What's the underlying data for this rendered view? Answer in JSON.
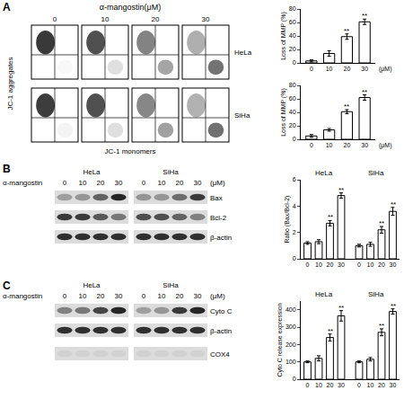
{
  "chart_data": [
    {
      "type": "bar",
      "ylabel": "Loss of MMP (%)",
      "xlabel": "(μM)",
      "categories": [
        "0",
        "10",
        "20",
        "30"
      ],
      "values": [
        3,
        14,
        39,
        61
      ],
      "errors": [
        1.5,
        4,
        4,
        4
      ],
      "significance": [
        null,
        null,
        "**",
        "**"
      ],
      "color": "#ffffff",
      "ylim": [
        0,
        80
      ],
      "yticks": [
        0,
        20,
        40,
        60,
        80
      ],
      "grid": false
    },
    {
      "type": "bar",
      "ylabel": "Loss of MMP (%)",
      "xlabel": "(μM)",
      "categories": [
        "0",
        "10",
        "20",
        "30"
      ],
      "values": [
        5,
        14,
        41,
        62
      ],
      "errors": [
        2,
        2,
        3,
        4
      ],
      "significance": [
        null,
        null,
        "**",
        "**"
      ],
      "color": "#ffffff",
      "ylim": [
        0,
        80
      ],
      "yticks": [
        0,
        20,
        40,
        60,
        80
      ],
      "grid": false
    },
    {
      "type": "bar",
      "ylabel": "Ratio (Bax/Bcl-2)",
      "categories": [
        "0",
        "10",
        "20",
        "30"
      ],
      "color": "#ffffff",
      "series": [
        {
          "name": "HeLa",
          "values": [
            1.2,
            1.3,
            2.7,
            4.8
          ],
          "errors": [
            0.1,
            0.15,
            0.2,
            0.2
          ],
          "significance": [
            null,
            null,
            "**",
            "**"
          ]
        },
        {
          "name": "SiHa",
          "values": [
            1.0,
            1.1,
            2.2,
            3.6
          ],
          "errors": [
            0.1,
            0.15,
            0.25,
            0.3
          ],
          "significance": [
            null,
            null,
            "**",
            "**"
          ]
        }
      ],
      "ylim": [
        0,
        6
      ],
      "yticks": [
        0,
        2,
        4,
        6
      ],
      "grid": false
    },
    {
      "type": "bar",
      "ylabel": "Cyto C release expression",
      "categories": [
        "0",
        "10",
        "20",
        "30"
      ],
      "color": "#ffffff",
      "series": [
        {
          "name": "HeLa",
          "values": [
            100,
            120,
            240,
            365
          ],
          "errors": [
            5,
            15,
            20,
            30
          ],
          "significance": [
            null,
            null,
            "**",
            "**"
          ]
        },
        {
          "name": "SiHa",
          "values": [
            100,
            115,
            270,
            390
          ],
          "errors": [
            5,
            10,
            20,
            15
          ],
          "significance": [
            null,
            null,
            "**",
            "**"
          ]
        }
      ],
      "ylim": [
        0,
        450
      ],
      "yticks": [
        0,
        100,
        200,
        300,
        400
      ],
      "grid": false
    }
  ],
  "panel_A": {
    "label": "A",
    "title": "α-mangostin(μM)",
    "doses": [
      "0",
      "10",
      "20",
      "30"
    ],
    "cell_lines": [
      "HeLa",
      "SiHa"
    ],
    "xlabel": "JC-1 monomers",
    "ylabel": "JC-1 aggregates"
  },
  "panel_B": {
    "label": "B",
    "treatment": "α-mangostin",
    "unit": "(μM)",
    "lanes": [
      "0",
      "10",
      "20",
      "30"
    ],
    "groups": [
      "HeLa",
      "SiHa"
    ],
    "blots": [
      {
        "name": "Bax",
        "intensity": [
          [
            0.3,
            0.35,
            0.6,
            0.9
          ],
          [
            0.35,
            0.35,
            0.55,
            0.8
          ]
        ]
      },
      {
        "name": "Bcl-2",
        "intensity": [
          [
            0.8,
            0.8,
            0.65,
            0.5
          ],
          [
            0.7,
            0.7,
            0.6,
            0.45
          ]
        ]
      },
      {
        "name": "β-actin",
        "intensity": [
          [
            0.85,
            0.85,
            0.85,
            0.85
          ],
          [
            0.85,
            0.85,
            0.85,
            0.85
          ]
        ]
      }
    ]
  },
  "panel_C": {
    "label": "C",
    "treatment": "α-mangostin",
    "unit": "(μM)",
    "lanes": [
      "0",
      "10",
      "20",
      "30"
    ],
    "groups": [
      "HeLa",
      "SiHa"
    ],
    "blots": [
      {
        "name": "Cyto C",
        "intensity": [
          [
            0.45,
            0.5,
            0.75,
            0.9
          ],
          [
            0.3,
            0.35,
            0.8,
            0.9
          ]
        ]
      },
      {
        "name": "β-actin",
        "intensity": [
          [
            0.85,
            0.85,
            0.85,
            0.85
          ],
          [
            0.85,
            0.85,
            0.85,
            0.85
          ]
        ]
      },
      {
        "name": "COX4",
        "intensity": [
          [
            0.05,
            0.05,
            0.05,
            0.05
          ],
          [
            0.05,
            0.05,
            0.05,
            0.05
          ]
        ]
      }
    ]
  }
}
